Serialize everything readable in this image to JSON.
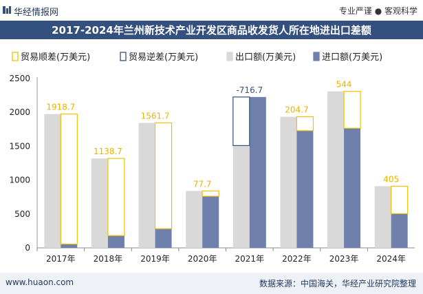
{
  "header": {
    "brand": "华经情报网",
    "tagline": "专业严谨 ● 客观科学"
  },
  "footer": {
    "website": "www.huaon.com",
    "source": "数据来源：中国海关，华经产业研究院整理"
  },
  "colors": {
    "title_bg": "#33507f",
    "export": "#d9d9d9",
    "import": "#6e80ab",
    "surplus": "#f2c200",
    "deficit": "#33507f",
    "label_surplus": "#e8b400",
    "label_deficit": "#33507f"
  },
  "chart_data": {
    "type": "bar",
    "title": "2017-2024年兰州新技术产业开发区商品收发货人所在地进出口差额",
    "categories": [
      "2017年",
      "2018年",
      "2019年",
      "2020年",
      "2021年",
      "2022年",
      "2023年",
      "2024年"
    ],
    "series": [
      {
        "name": "出口额(万美元)",
        "values": [
          1975,
          1320,
          1845,
          840,
          1510,
          1935,
          2310,
          910
        ]
      },
      {
        "name": "进口额(万美元)",
        "values": [
          56,
          181,
          283,
          762,
          2227,
          1730,
          1766,
          505
        ]
      }
    ],
    "balance": {
      "surplus_name": "贸易顺差(万美元)",
      "deficit_name": "贸易逆差(万美元)",
      "labels": [
        "1918.7",
        "1138.7",
        "1561.7",
        "77.7",
        "-716.7",
        "204.7",
        "544",
        "405"
      ]
    },
    "yticks": [
      "0",
      "500",
      "1000",
      "1500",
      "2000",
      "2500"
    ],
    "ylim": [
      0,
      2500
    ],
    "legend_position": "top"
  }
}
